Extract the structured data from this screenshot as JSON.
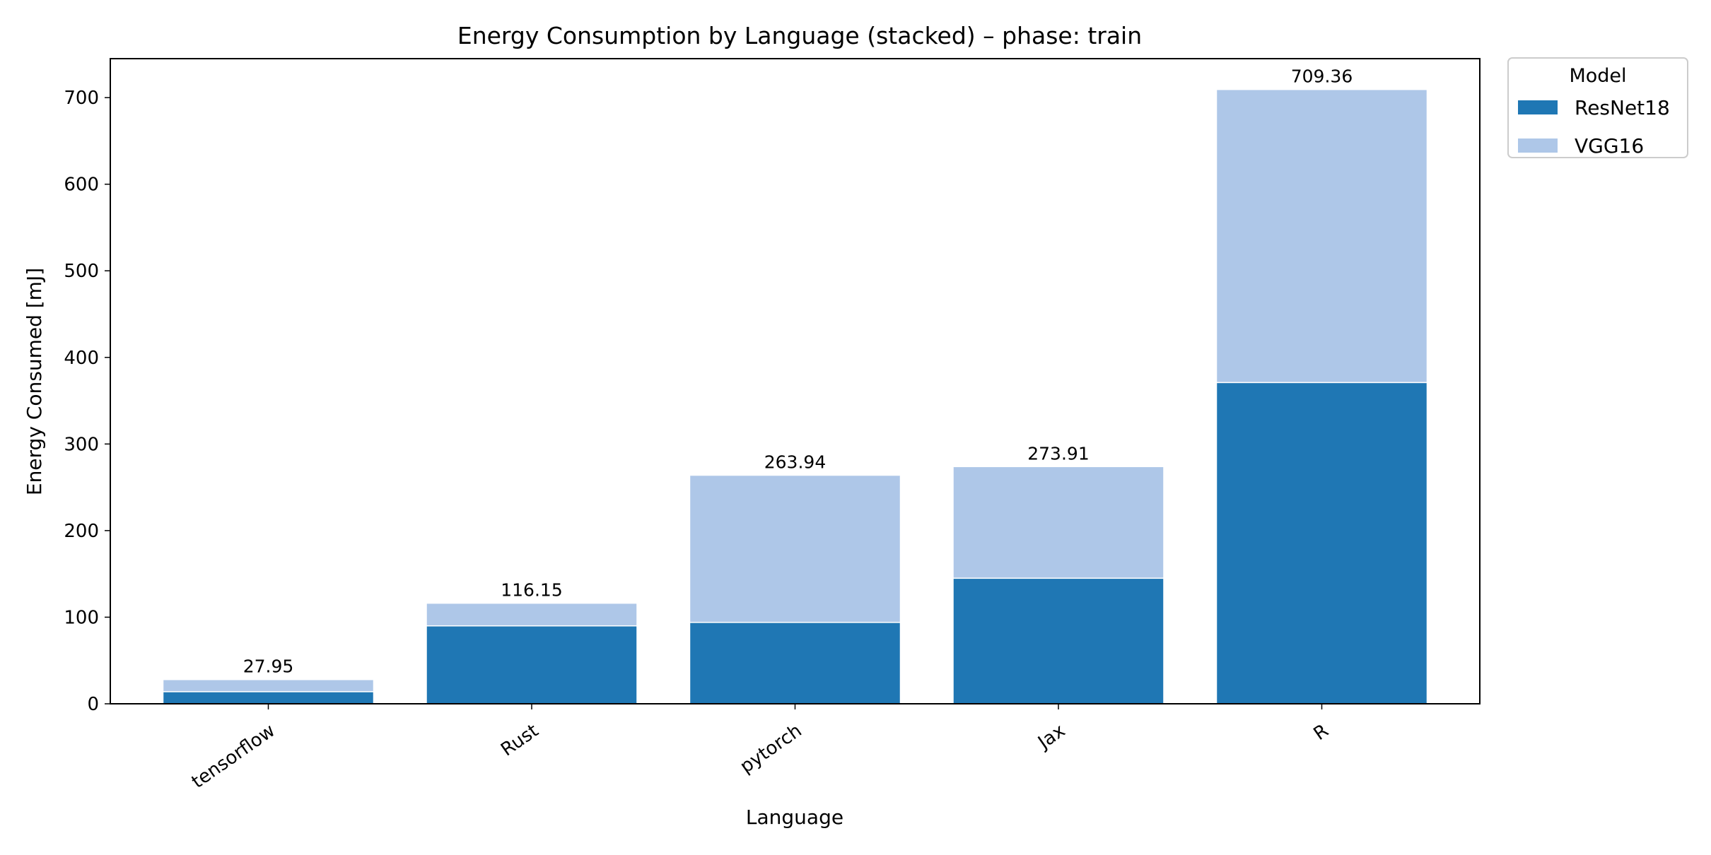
{
  "chart_data": {
    "type": "bar",
    "stacked": true,
    "title": "Energy Consumption by Language (stacked) – phase: train",
    "xlabel": "Language",
    "ylabel": "Energy Consumed [mJ]",
    "categories": [
      "tensorflow",
      "Rust",
      "pytorch",
      "Jax",
      "R"
    ],
    "series": [
      {
        "name": "ResNet18",
        "color": "#1f77b4",
        "values": [
          14.0,
          90.0,
          94.0,
          145.0,
          371.0
        ]
      },
      {
        "name": "VGG16",
        "color": "#aec7e8",
        "values": [
          13.95,
          26.15,
          169.94,
          128.91,
          338.36
        ]
      }
    ],
    "totals": [
      "27.95",
      "116.15",
      "263.94",
      "273.91",
      "709.36"
    ],
    "ylim": [
      0,
      745
    ],
    "yticks": [
      0,
      100,
      200,
      300,
      400,
      500,
      600,
      700
    ],
    "legend": {
      "title": "Model",
      "placement": "outside upper-right"
    },
    "grid": false
  }
}
